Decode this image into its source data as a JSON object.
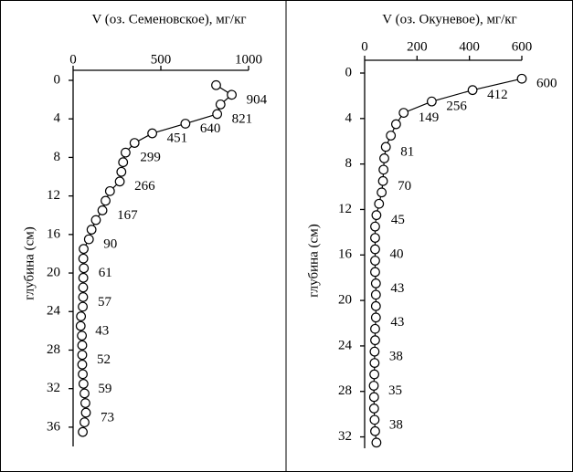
{
  "chart_data": [
    {
      "type": "line",
      "title": "V (оз. Семеновское), мг/кг",
      "ylabel": "глубина (см)",
      "depth": [
        0.5,
        1.5,
        2.5,
        3.5,
        4.5,
        5.5,
        6.5,
        7.5,
        8.5,
        9.5,
        10.5,
        11.5,
        12.5,
        13.5,
        14.5,
        15.5,
        16.5,
        17.5,
        18.5,
        19.5,
        20.5,
        21.5,
        22.5,
        23.5,
        24.5,
        25.5,
        26.5,
        27.5,
        28.5,
        29.5,
        30.5,
        31.5,
        32.5,
        33.5,
        34.5,
        35.5,
        36.5
      ],
      "values": [
        815,
        904,
        840,
        821,
        640,
        451,
        350,
        299,
        285,
        275,
        266,
        210,
        185,
        167,
        130,
        105,
        90,
        60,
        58,
        61,
        58,
        57,
        57,
        55,
        45,
        43,
        50,
        52,
        52,
        52,
        55,
        59,
        65,
        70,
        73,
        65,
        55
      ],
      "color": "#000000",
      "marker": "circle",
      "xlim": [
        0,
        1000
      ],
      "xticks": [
        0,
        500,
        1000
      ],
      "ylim": [
        0,
        38
      ],
      "yticks": [
        0,
        4,
        8,
        12,
        16,
        20,
        24,
        28,
        32,
        36
      ]
    },
    {
      "type": "line",
      "title": "V (оз. Окуневое), мг/кг",
      "ylabel": "глубина (см)",
      "depth": [
        0.5,
        1.5,
        2.5,
        3.5,
        4.5,
        5.5,
        6.5,
        7.5,
        8.5,
        9.5,
        10.5,
        11.5,
        12.5,
        13.5,
        14.5,
        15.5,
        16.5,
        17.5,
        18.5,
        19.5,
        20.5,
        21.5,
        22.5,
        23.5,
        24.5,
        25.5,
        26.5,
        27.5,
        28.5,
        29.5,
        30.5,
        31.5,
        32.5
      ],
      "values": [
        600,
        412,
        256,
        149,
        120,
        100,
        81,
        75,
        72,
        70,
        65,
        55,
        45,
        40,
        40,
        40,
        40,
        40,
        43,
        43,
        43,
        43,
        40,
        40,
        38,
        38,
        37,
        35,
        36,
        36,
        38,
        40,
        45
      ],
      "color": "#000000",
      "marker": "circle",
      "xlim": [
        0,
        600
      ],
      "xticks": [
        0,
        200,
        400,
        600
      ],
      "ylim": [
        0,
        33
      ],
      "yticks": [
        0,
        4,
        8,
        12,
        16,
        20,
        24,
        28,
        32
      ]
    }
  ]
}
